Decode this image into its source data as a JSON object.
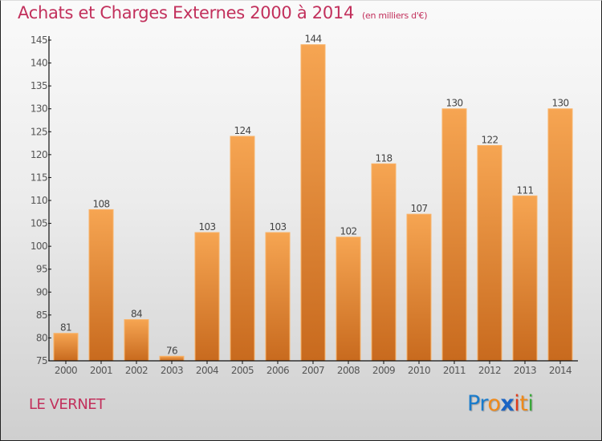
{
  "header": {
    "title": "Achats et Charges Externes 2000 à 2014",
    "unit": "(en milliers d'€)"
  },
  "footer": {
    "commune": "LE VERNET",
    "brand": {
      "letters": [
        {
          "char": "P",
          "color": "#1a7ccc"
        },
        {
          "char": "r",
          "color": "#1a7ccc"
        },
        {
          "char": "o",
          "color": "#f08a1a"
        },
        {
          "char": "x",
          "color": "#1a64c4"
        },
        {
          "char": "i",
          "color": "#e03a1a"
        },
        {
          "char": "t",
          "color": "#f08a1a"
        },
        {
          "char": "i",
          "color": "#3aa83a"
        }
      ]
    }
  },
  "colors": {
    "title": "#c2305c",
    "bar_top": "#f6a552",
    "bar_bottom": "#c86a1e",
    "bar_edge": "#f9b46a"
  },
  "chart_data": {
    "type": "bar",
    "title": "Achats et Charges Externes 2000 à 2014",
    "subtitle": "(en milliers d'€)",
    "xlabel": "",
    "ylabel": "",
    "categories": [
      "2000",
      "2001",
      "2002",
      "2003",
      "2004",
      "2005",
      "2006",
      "2007",
      "2008",
      "2009",
      "2010",
      "2011",
      "2012",
      "2013",
      "2014"
    ],
    "values": [
      81,
      108,
      84,
      76,
      103,
      124,
      103,
      144,
      102,
      118,
      107,
      130,
      122,
      111,
      130
    ],
    "ylim": [
      75,
      145
    ],
    "yticks": [
      75,
      80,
      85,
      90,
      95,
      100,
      105,
      110,
      115,
      120,
      125,
      130,
      135,
      140,
      145
    ],
    "grid": false,
    "legend": "none",
    "data_labels": true
  }
}
